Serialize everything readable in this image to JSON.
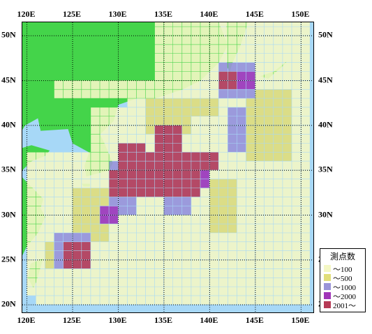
{
  "map": {
    "longitude_labels": [
      "120E",
      "125E",
      "130E",
      "135E",
      "140E",
      "145E",
      "150E"
    ],
    "latitude_labels": [
      "50N",
      "45N",
      "40N",
      "35N",
      "30N",
      "25N",
      "20N"
    ],
    "extent": {
      "lon_min": 119.5,
      "lon_max": 151.5,
      "lat_min": 19.0,
      "lat_max": 51.5
    },
    "grid_lons": [
      120,
      125,
      130,
      135,
      140,
      145,
      150
    ],
    "grid_lats": [
      20,
      25,
      30,
      35,
      40,
      45,
      50
    ],
    "colors": {
      "sea": "#a7d8f7",
      "land": "#44d44a",
      "bin_100": "#f4f7c4",
      "bin_500": "#e1de7a",
      "bin_1000": "#9a94d8",
      "bin_2000": "#a035b8",
      "bin_2001": "#b63a55",
      "graticule": "#000000"
    }
  },
  "legend": {
    "title": "測点数",
    "items": [
      {
        "label": "～100",
        "color": "#f4f7c4"
      },
      {
        "label": "～500",
        "color": "#e1de7a"
      },
      {
        "label": "～1000",
        "color": "#9a94d8"
      },
      {
        "label": "～2000",
        "color": "#a035b8"
      },
      {
        "label": "2001～",
        "color": "#b63a55"
      }
    ]
  }
}
